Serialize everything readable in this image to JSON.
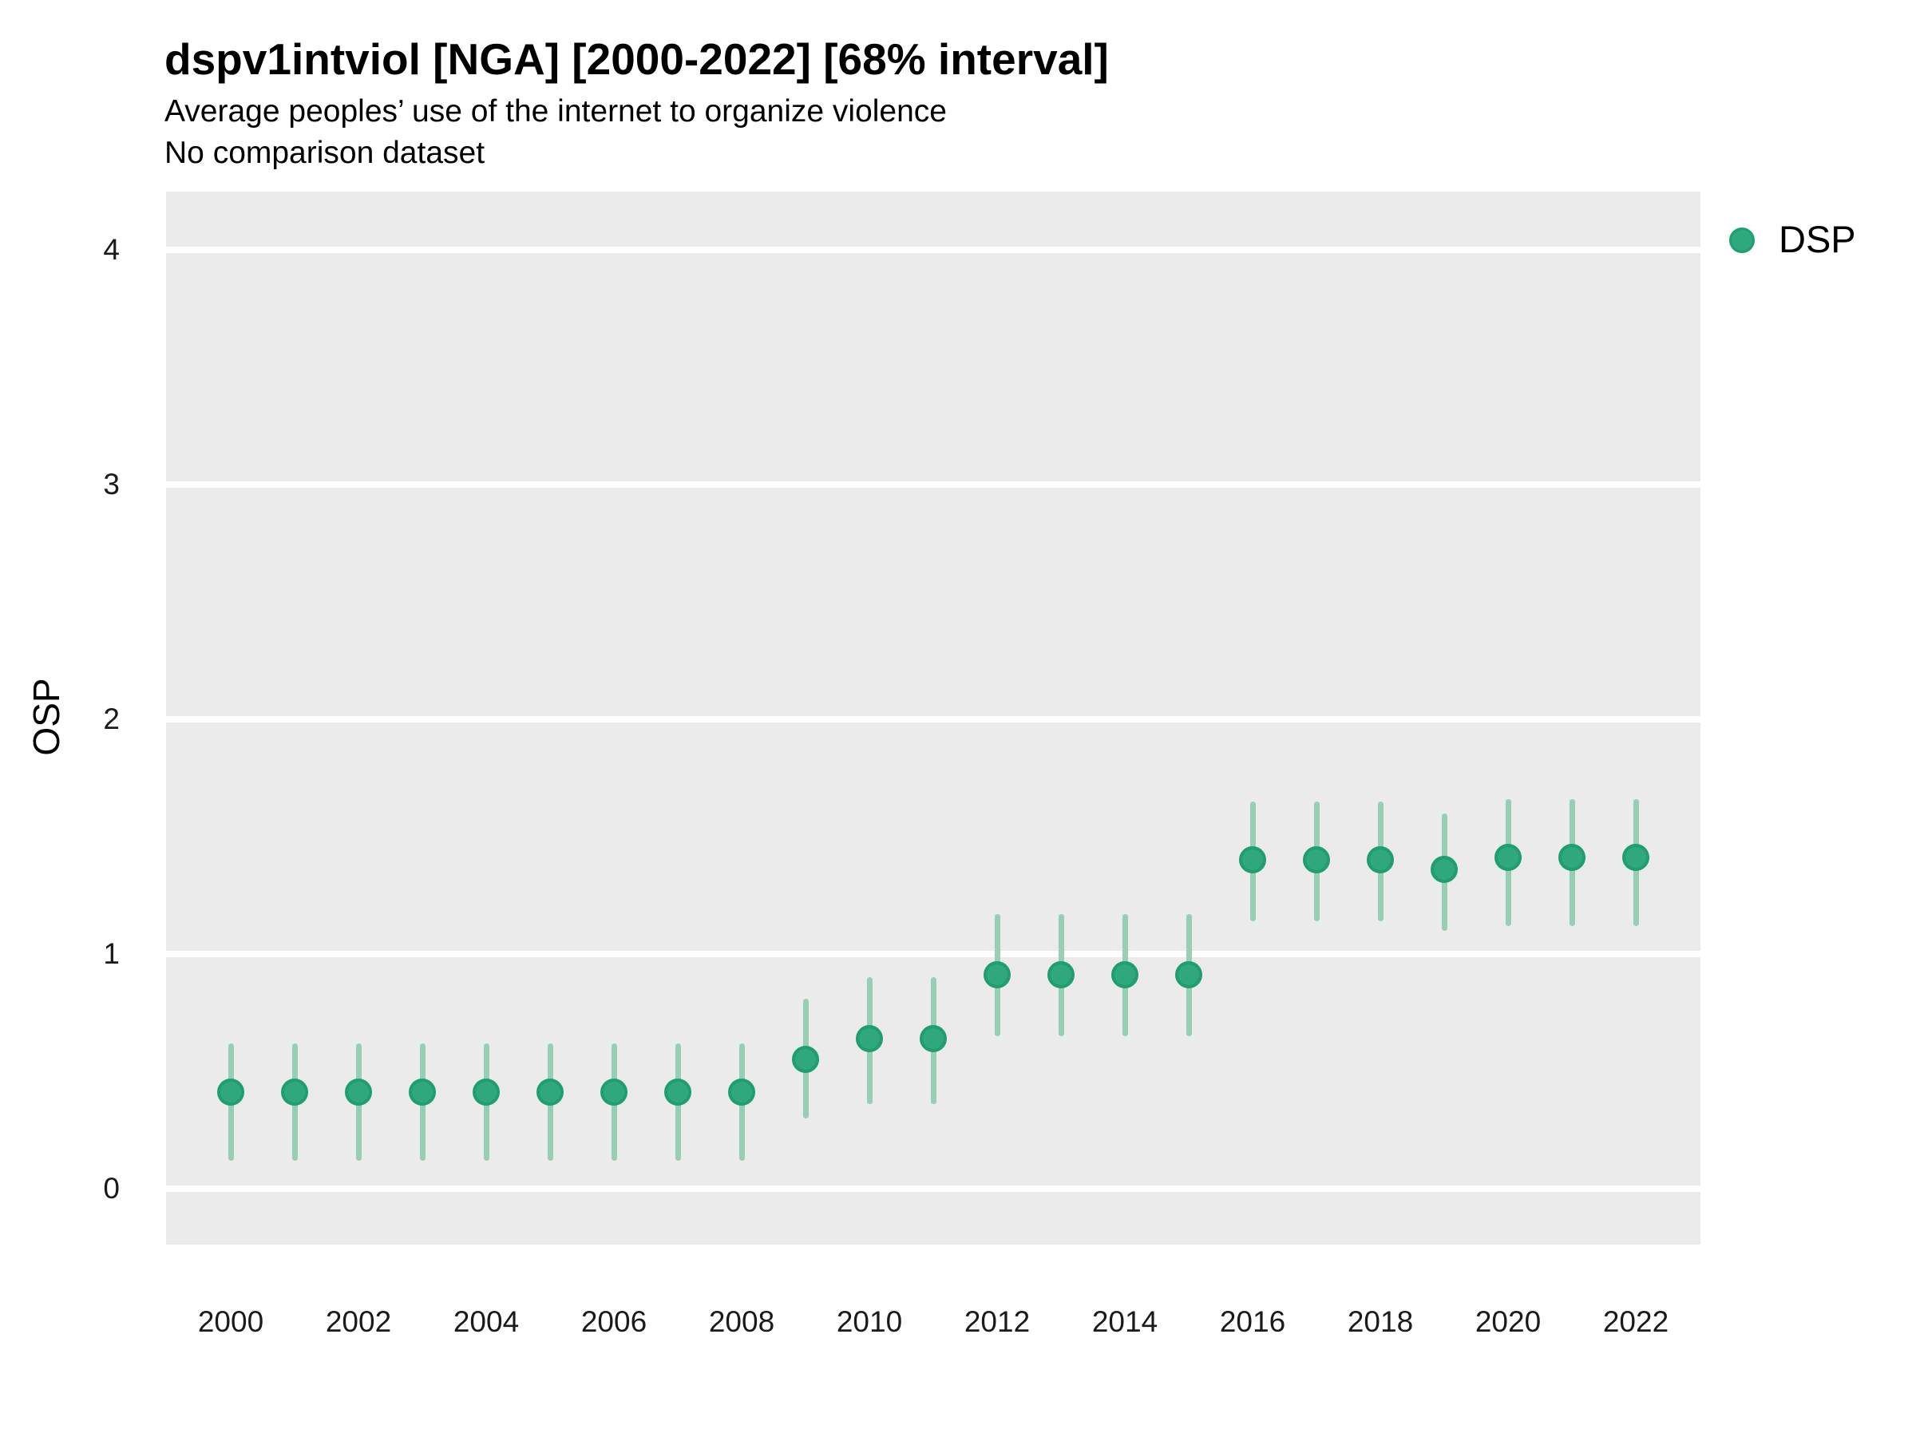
{
  "header": {
    "title": "dspv1intviol [NGA] [2000-2022] [68% interval]",
    "subtitle": "Average peoples’ use of the internet to organize violence",
    "note": "No comparison dataset"
  },
  "legend": {
    "label": "DSP"
  },
  "colors": {
    "point_fill": "#2ea87c",
    "point_stroke": "#1f9e6e",
    "interval_bar": "#96cfb5",
    "panel_background": "#ebebeb",
    "gridline": "#ffffff"
  },
  "chart_data": {
    "type": "scatter",
    "title": "dspv1intviol [NGA] [2000-2022] [68% interval]",
    "subtitle": "Average peoples’ use of the internet to organize violence",
    "note": "No comparison dataset",
    "interval_level": "68%",
    "xlabel": "",
    "ylabel": "OSP",
    "ylim": [
      -0.24,
      4.25
    ],
    "y_ticks": [
      0,
      1,
      2,
      3,
      4
    ],
    "x_ticks": [
      2000,
      2002,
      2004,
      2006,
      2008,
      2010,
      2012,
      2014,
      2016,
      2018,
      2020,
      2022
    ],
    "grid": "horizontal-major-only",
    "legend_position": "right-top",
    "series": [
      {
        "name": "DSP",
        "x": [
          2000,
          2001,
          2002,
          2003,
          2004,
          2005,
          2006,
          2007,
          2008,
          2009,
          2010,
          2011,
          2012,
          2013,
          2014,
          2015,
          2016,
          2017,
          2018,
          2019,
          2020,
          2021,
          2022
        ],
        "estimate": [
          0.41,
          0.41,
          0.41,
          0.41,
          0.41,
          0.41,
          0.41,
          0.41,
          0.41,
          0.55,
          0.64,
          0.64,
          0.91,
          0.91,
          0.91,
          0.91,
          1.4,
          1.4,
          1.4,
          1.36,
          1.41,
          1.41,
          1.41
        ],
        "ci_low": [
          0.12,
          0.12,
          0.12,
          0.12,
          0.12,
          0.12,
          0.12,
          0.12,
          0.12,
          0.3,
          0.36,
          0.36,
          0.65,
          0.65,
          0.65,
          0.65,
          1.14,
          1.14,
          1.14,
          1.1,
          1.12,
          1.12,
          1.12
        ],
        "ci_high": [
          0.62,
          0.62,
          0.62,
          0.62,
          0.62,
          0.62,
          0.62,
          0.62,
          0.62,
          0.81,
          0.9,
          0.9,
          1.17,
          1.17,
          1.17,
          1.17,
          1.65,
          1.65,
          1.65,
          1.6,
          1.66,
          1.66,
          1.66
        ]
      }
    ]
  }
}
